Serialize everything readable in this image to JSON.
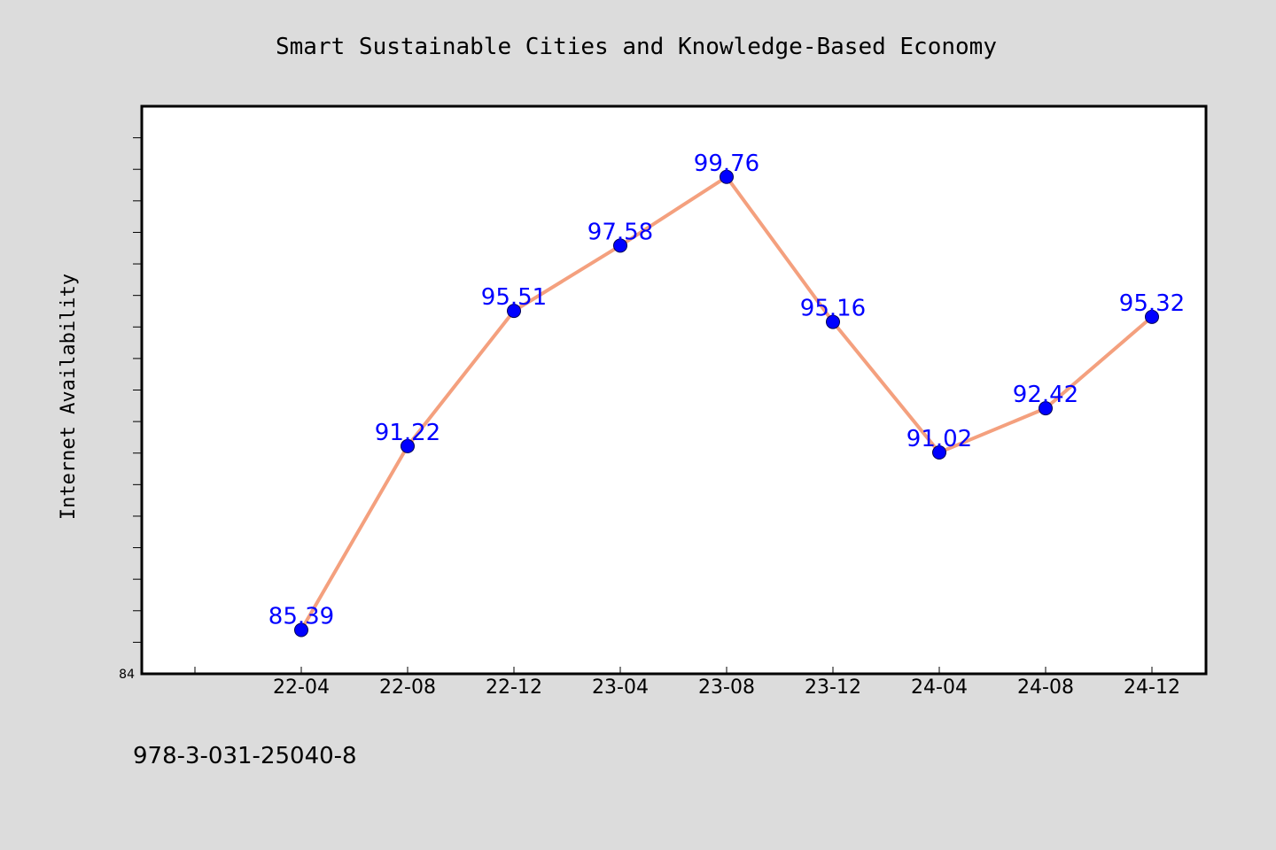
{
  "chart_data": {
    "type": "line",
    "title": "Smart Sustainable Cities and Knowledge-Based Economy",
    "xlabel": "",
    "ylabel": "Internet Availability",
    "categories": [
      "22-04",
      "22-08",
      "22-12",
      "23-04",
      "23-08",
      "23-12",
      "24-04",
      "24-08",
      "24-12"
    ],
    "values": [
      85.39,
      91.22,
      95.51,
      97.58,
      99.76,
      95.16,
      91.02,
      92.42,
      95.32
    ],
    "data_labels": [
      "85.39",
      "91.22",
      "95.51",
      "97.58",
      "99.76",
      "95.16",
      "91.02",
      "92.42",
      "95.32"
    ],
    "ylim": [
      84,
      102
    ],
    "y_tick_labels": [
      {
        "value": 84,
        "label": "84"
      }
    ],
    "grid": false,
    "legend": "none",
    "line_color": "#f4a07e",
    "marker_color": "#0000ff",
    "label_color": "#0000ff"
  },
  "footer": {
    "isbn": "978-3-031-25040-8"
  }
}
